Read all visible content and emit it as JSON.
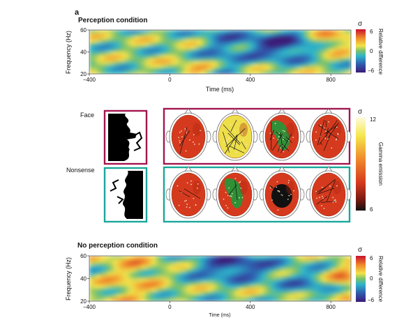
{
  "panel_label": "a",
  "top": {
    "title": "Perception condition",
    "ylabel": "Frequency (Hz)",
    "xlabel": "Time (ms)",
    "cbar_symbol": "σ",
    "cbar_label": "Relative difference",
    "cbar_ticks": [
      "6",
      "0",
      "−6"
    ]
  },
  "middle": {
    "rows": [
      {
        "label": "Face",
        "border_color": "#a3154f",
        "head_colors": [
          "#d63a1e",
          "#eedf4a",
          "#d63a1e",
          "#d63a1e"
        ],
        "blob_colors": [
          "",
          "",
          "#1f9a3a",
          ""
        ]
      },
      {
        "label": "Nonsense",
        "border_color": "#19a79b",
        "head_colors": [
          "#d63a1e",
          "#d63a1e",
          "#d63a1e",
          "#d63a1e"
        ],
        "blob_colors": [
          "",
          "#1f9a3a",
          "#111111",
          ""
        ]
      }
    ],
    "cbar_symbol": "σ",
    "cbar_label": "Gamma emission",
    "cbar_ticks": [
      "12",
      "6"
    ]
  },
  "bottom": {
    "title": "No perception condition",
    "ylabel": "Frequency (Hz)",
    "xlabel": "Time (ms)",
    "cbar_symbol": "σ",
    "cbar_label": "Relative difference",
    "cbar_ticks": [
      "6",
      "0",
      "−6"
    ]
  },
  "chart_data": [
    {
      "type": "heatmap",
      "title": "Perception condition",
      "xlabel": "Time (ms)",
      "ylabel": "Frequency (Hz)",
      "x_ticks": [
        -400,
        0,
        400,
        800
      ],
      "y_ticks": [
        20,
        40,
        60
      ],
      "xlim": [
        -400,
        900
      ],
      "ylim": [
        20,
        60
      ],
      "colorbar": {
        "label": "Relative difference",
        "symbol": "σ",
        "range": [
          -6,
          6
        ],
        "ticks": [
          6,
          0,
          -6
        ]
      }
    },
    {
      "type": "heatmap",
      "title": "No perception condition",
      "xlabel": "Time (ms)",
      "ylabel": "Frequency (Hz)",
      "x_ticks": [
        -400,
        0,
        400,
        800
      ],
      "y_ticks": [
        20,
        40,
        60
      ],
      "xlim": [
        -400,
        900
      ],
      "ylim": [
        20,
        60
      ],
      "colorbar": {
        "label": "Relative difference",
        "symbol": "σ",
        "range": [
          -6,
          6
        ],
        "ticks": [
          6,
          0,
          -6
        ]
      }
    }
  ]
}
